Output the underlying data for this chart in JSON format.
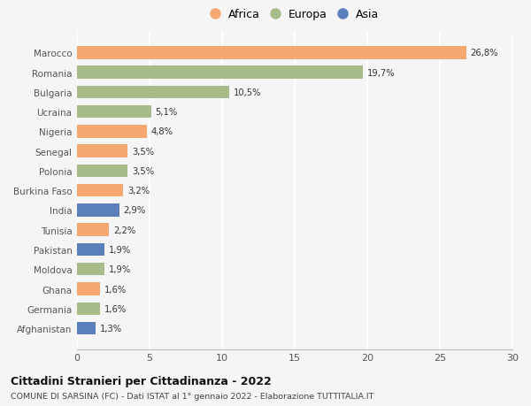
{
  "categories": [
    "Marocco",
    "Romania",
    "Bulgaria",
    "Ucraina",
    "Nigeria",
    "Senegal",
    "Polonia",
    "Burkina Faso",
    "India",
    "Tunisia",
    "Pakistan",
    "Moldova",
    "Ghana",
    "Germania",
    "Afghanistan"
  ],
  "values": [
    26.8,
    19.7,
    10.5,
    5.1,
    4.8,
    3.5,
    3.5,
    3.2,
    2.9,
    2.2,
    1.9,
    1.9,
    1.6,
    1.6,
    1.3
  ],
  "regions": [
    "Africa",
    "Europa",
    "Europa",
    "Europa",
    "Africa",
    "Africa",
    "Europa",
    "Africa",
    "Asia",
    "Africa",
    "Asia",
    "Europa",
    "Africa",
    "Europa",
    "Asia"
  ],
  "colors": {
    "Africa": "#F5A870",
    "Europa": "#A8BC8A",
    "Asia": "#5B7FBA"
  },
  "title": "Cittadini Stranieri per Cittadinanza - 2022",
  "subtitle": "COMUNE DI SARSINA (FC) - Dati ISTAT al 1° gennaio 2022 - Elaborazione TUTTITALIA.IT",
  "xlim": [
    0,
    30
  ],
  "xticks": [
    0,
    5,
    10,
    15,
    20,
    25,
    30
  ],
  "background_color": "#f5f5f5",
  "grid_color": "#ffffff",
  "legend_labels": [
    "Africa",
    "Europa",
    "Asia"
  ]
}
